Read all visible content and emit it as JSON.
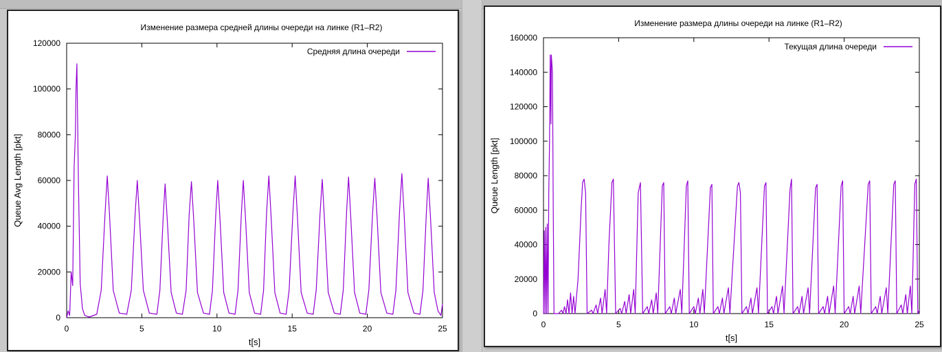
{
  "chart_data": [
    {
      "type": "line",
      "title": "Изменение размера средней длины очереди на линке (R1–R2)",
      "xlabel": "t[s]",
      "ylabel": "Queue Avg Length [pkt]",
      "xlim": [
        0,
        25
      ],
      "ylim": [
        0,
        120000
      ],
      "x_ticks": [
        0,
        5,
        10,
        15,
        20,
        25
      ],
      "y_ticks": [
        0,
        20000,
        40000,
        60000,
        80000,
        100000,
        120000
      ],
      "legend_position": "top-right",
      "color": "#9400d3",
      "series": [
        {
          "name": "Средняя длина очереди",
          "points": [
            [
              0,
              0
            ],
            [
              0.1,
              3000
            ],
            [
              0.2,
              1000
            ],
            [
              0.3,
              20000
            ],
            [
              0.4,
              14000
            ],
            [
              0.5,
              66000
            ],
            [
              0.58,
              80000
            ],
            [
              0.62,
              100000
            ],
            [
              0.68,
              111000
            ],
            [
              0.78,
              60000
            ],
            [
              0.9,
              15000
            ],
            [
              1.05,
              4000
            ],
            [
              1.2,
              1000
            ],
            [
              1.5,
              300
            ],
            [
              2.0,
              1500
            ],
            [
              2.3,
              12000
            ],
            [
              2.55,
              45000
            ],
            [
              2.7,
              62000
            ],
            [
              2.85,
              45000
            ],
            [
              3.1,
              12000
            ],
            [
              3.5,
              2000
            ],
            [
              4.0,
              1500
            ],
            [
              4.3,
              12000
            ],
            [
              4.55,
              45000
            ],
            [
              4.7,
              60000
            ],
            [
              4.85,
              43000
            ],
            [
              5.1,
              12000
            ],
            [
              5.5,
              2000
            ],
            [
              6.0,
              1500
            ],
            [
              6.2,
              12000
            ],
            [
              6.42,
              44000
            ],
            [
              6.55,
              58500
            ],
            [
              6.7,
              42000
            ],
            [
              6.95,
              11000
            ],
            [
              7.3,
              2000
            ],
            [
              7.7,
              1500
            ],
            [
              7.95,
              12000
            ],
            [
              8.15,
              45000
            ],
            [
              8.3,
              59500
            ],
            [
              8.45,
              43000
            ],
            [
              8.7,
              11000
            ],
            [
              9.1,
              2000
            ],
            [
              9.5,
              1500
            ],
            [
              9.7,
              12000
            ],
            [
              9.92,
              45000
            ],
            [
              10.05,
              60000
            ],
            [
              10.2,
              43000
            ],
            [
              10.45,
              11000
            ],
            [
              10.8,
              2000
            ],
            [
              11.2,
              1500
            ],
            [
              11.4,
              12000
            ],
            [
              11.62,
              45000
            ],
            [
              11.75,
              60000
            ],
            [
              11.9,
              43000
            ],
            [
              12.15,
              11000
            ],
            [
              12.5,
              2000
            ],
            [
              12.9,
              1500
            ],
            [
              13.1,
              12000
            ],
            [
              13.3,
              46000
            ],
            [
              13.45,
              62000
            ],
            [
              13.6,
              44000
            ],
            [
              13.85,
              11000
            ],
            [
              14.2,
              2000
            ],
            [
              14.6,
              1500
            ],
            [
              14.8,
              12000
            ],
            [
              15.05,
              46000
            ],
            [
              15.2,
              62000
            ],
            [
              15.35,
              44000
            ],
            [
              15.6,
              11000
            ],
            [
              16.0,
              2000
            ],
            [
              16.4,
              1500
            ],
            [
              16.6,
              12000
            ],
            [
              16.85,
              45000
            ],
            [
              17.0,
              60500
            ],
            [
              17.15,
              43000
            ],
            [
              17.4,
              11000
            ],
            [
              17.8,
              2000
            ],
            [
              18.2,
              1500
            ],
            [
              18.4,
              12000
            ],
            [
              18.62,
              46000
            ],
            [
              18.75,
              61500
            ],
            [
              18.9,
              44000
            ],
            [
              19.15,
              11000
            ],
            [
              19.5,
              2000
            ],
            [
              19.9,
              1500
            ],
            [
              20.1,
              12000
            ],
            [
              20.35,
              46000
            ],
            [
              20.5,
              61000
            ],
            [
              20.65,
              44000
            ],
            [
              20.9,
              11000
            ],
            [
              21.3,
              2000
            ],
            [
              21.7,
              1500
            ],
            [
              21.9,
              12000
            ],
            [
              22.15,
              47000
            ],
            [
              22.3,
              63000
            ],
            [
              22.45,
              45000
            ],
            [
              22.7,
              11000
            ],
            [
              23.1,
              2000
            ],
            [
              23.5,
              1500
            ],
            [
              23.7,
              12000
            ],
            [
              23.92,
              45000
            ],
            [
              24.05,
              61000
            ],
            [
              24.2,
              44000
            ],
            [
              24.45,
              11000
            ],
            [
              24.7,
              3000
            ],
            [
              24.9,
              1000
            ],
            [
              25,
              6000
            ]
          ]
        }
      ]
    },
    {
      "type": "line",
      "title": "Изменение размера длины очереди на линке (R1–R2)",
      "xlabel": "t[s]",
      "ylabel": "Queue Length [pkt]",
      "xlim": [
        0,
        25
      ],
      "ylim": [
        0,
        160000
      ],
      "x_ticks": [
        0,
        5,
        10,
        15,
        20,
        25
      ],
      "y_ticks": [
        0,
        20000,
        40000,
        60000,
        80000,
        100000,
        120000,
        140000,
        160000
      ],
      "legend_position": "top-right",
      "color": "#9400d3",
      "series": [
        {
          "name": "Текущая длина очереди",
          "points": [
            [
              0,
              0
            ],
            [
              0.05,
              48000
            ],
            [
              0.1,
              0
            ],
            [
              0.15,
              50000
            ],
            [
              0.2,
              0
            ],
            [
              0.25,
              52000
            ],
            [
              0.3,
              0
            ],
            [
              0.35,
              70000
            ],
            [
              0.4,
              100000
            ],
            [
              0.45,
              150000
            ],
            [
              0.5,
              110000
            ],
            [
              0.52,
              150000
            ],
            [
              0.6,
              140000
            ],
            [
              0.65,
              60000
            ],
            [
              0.7,
              0
            ],
            [
              1.0,
              0
            ],
            [
              1.2,
              2000
            ],
            [
              1.3,
              0
            ],
            [
              1.4,
              4000
            ],
            [
              1.5,
              0
            ],
            [
              1.6,
              8000
            ],
            [
              1.7,
              0
            ],
            [
              1.8,
              12000
            ],
            [
              1.9,
              0
            ],
            [
              2.0,
              10000
            ],
            [
              2.1,
              0
            ],
            [
              2.3,
              20000
            ],
            [
              2.5,
              60000
            ],
            [
              2.6,
              76000
            ],
            [
              2.7,
              78000
            ],
            [
              2.8,
              70000
            ],
            [
              2.9,
              0
            ],
            [
              3.2,
              2000
            ],
            [
              3.3,
              0
            ],
            [
              3.5,
              5000
            ],
            [
              3.6,
              0
            ],
            [
              3.8,
              9000
            ],
            [
              3.9,
              0
            ],
            [
              4.1,
              14000
            ],
            [
              4.2,
              0
            ],
            [
              4.35,
              40000
            ],
            [
              4.55,
              76000
            ],
            [
              4.65,
              78000
            ],
            [
              4.8,
              0
            ],
            [
              5.1,
              3000
            ],
            [
              5.2,
              0
            ],
            [
              5.4,
              7000
            ],
            [
              5.5,
              0
            ],
            [
              5.7,
              11000
            ],
            [
              5.8,
              0
            ],
            [
              6.0,
              14000
            ],
            [
              6.1,
              0
            ],
            [
              6.3,
              70000
            ],
            [
              6.45,
              76000
            ],
            [
              6.6,
              0
            ],
            [
              6.9,
              4000
            ],
            [
              7.0,
              0
            ],
            [
              7.2,
              8000
            ],
            [
              7.3,
              0
            ],
            [
              7.5,
              12000
            ],
            [
              7.6,
              0
            ],
            [
              7.9,
              74000
            ],
            [
              8.0,
              76000
            ],
            [
              8.1,
              0
            ],
            [
              8.4,
              4000
            ],
            [
              8.5,
              0
            ],
            [
              8.7,
              9000
            ],
            [
              8.8,
              0
            ],
            [
              9.1,
              14000
            ],
            [
              9.2,
              0
            ],
            [
              9.5,
              74000
            ],
            [
              9.6,
              77000
            ],
            [
              9.7,
              0
            ],
            [
              10.0,
              4000
            ],
            [
              10.1,
              0
            ],
            [
              10.3,
              9000
            ],
            [
              10.4,
              0
            ],
            [
              10.6,
              14000
            ],
            [
              10.7,
              0
            ],
            [
              11.1,
              73000
            ],
            [
              11.2,
              75000
            ],
            [
              11.3,
              0
            ],
            [
              11.6,
              4000
            ],
            [
              11.7,
              0
            ],
            [
              11.9,
              9000
            ],
            [
              12.0,
              0
            ],
            [
              12.3,
              15000
            ],
            [
              12.4,
              0
            ],
            [
              12.9,
              74000
            ],
            [
              13.0,
              76000
            ],
            [
              13.1,
              70000
            ],
            [
              13.2,
              0
            ],
            [
              13.5,
              4000
            ],
            [
              13.6,
              0
            ],
            [
              13.8,
              9000
            ],
            [
              13.9,
              0
            ],
            [
              14.2,
              15000
            ],
            [
              14.3,
              0
            ],
            [
              14.7,
              74000
            ],
            [
              14.8,
              76000
            ],
            [
              14.9,
              0
            ],
            [
              15.2,
              4000
            ],
            [
              15.3,
              0
            ],
            [
              15.5,
              10000
            ],
            [
              15.6,
              0
            ],
            [
              15.9,
              16000
            ],
            [
              16.0,
              0
            ],
            [
              16.4,
              72000
            ],
            [
              16.5,
              78000
            ],
            [
              16.6,
              0
            ],
            [
              16.9,
              4000
            ],
            [
              17.0,
              0
            ],
            [
              17.2,
              10000
            ],
            [
              17.3,
              0
            ],
            [
              17.6,
              15000
            ],
            [
              17.7,
              0
            ],
            [
              18.1,
              73000
            ],
            [
              18.2,
              75000
            ],
            [
              18.3,
              0
            ],
            [
              18.6,
              4000
            ],
            [
              18.7,
              0
            ],
            [
              18.9,
              10000
            ],
            [
              19.0,
              0
            ],
            [
              19.3,
              16000
            ],
            [
              19.4,
              0
            ],
            [
              19.8,
              74000
            ],
            [
              19.9,
              77000
            ],
            [
              20.0,
              0
            ],
            [
              20.3,
              4000
            ],
            [
              20.4,
              0
            ],
            [
              20.6,
              10000
            ],
            [
              20.7,
              0
            ],
            [
              21.0,
              16000
            ],
            [
              21.1,
              0
            ],
            [
              21.6,
              75000
            ],
            [
              21.7,
              77000
            ],
            [
              21.8,
              0
            ],
            [
              22.1,
              4000
            ],
            [
              22.2,
              0
            ],
            [
              22.4,
              10000
            ],
            [
              22.5,
              0
            ],
            [
              22.8,
              15000
            ],
            [
              22.9,
              0
            ],
            [
              23.3,
              75000
            ],
            [
              23.4,
              77000
            ],
            [
              23.5,
              0
            ],
            [
              23.8,
              5000
            ],
            [
              23.9,
              0
            ],
            [
              24.1,
              11000
            ],
            [
              24.2,
              0
            ],
            [
              24.4,
              16000
            ],
            [
              24.5,
              0
            ],
            [
              24.7,
              75000
            ],
            [
              24.8,
              78000
            ],
            [
              24.9,
              0
            ],
            [
              25,
              2000
            ]
          ]
        }
      ]
    }
  ]
}
